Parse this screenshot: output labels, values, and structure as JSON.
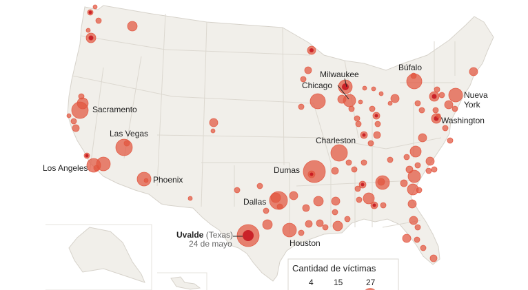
{
  "colors": {
    "land": "#f1efea",
    "state_border": "#dcd8d0",
    "bubble": "#e2553f",
    "bubble_dark": "#c4121c",
    "label_text": "#222222",
    "background": "#ffffff"
  },
  "labels": {
    "sacramento": "Sacramento",
    "las_vegas": "Las Vegas",
    "los_angeles": "Los Angeles",
    "phoenix": "Phoenix",
    "dallas": "Dallas",
    "dumas": "Dumas",
    "houston": "Houston",
    "uvalde_name": "Uvalde",
    "uvalde_state": " (Texas)",
    "uvalde_date": "24 de mayo",
    "charleston": "Charleston",
    "chicago": "Chicago",
    "milwaukee": "Milwaukee",
    "bufalo": "Búfalo",
    "nueva": "Nueva",
    "york": "York",
    "washington": "Washington"
  },
  "legend": {
    "title": "Cantidad de víctimas",
    "values": [
      "4",
      "15",
      "27"
    ]
  }
}
